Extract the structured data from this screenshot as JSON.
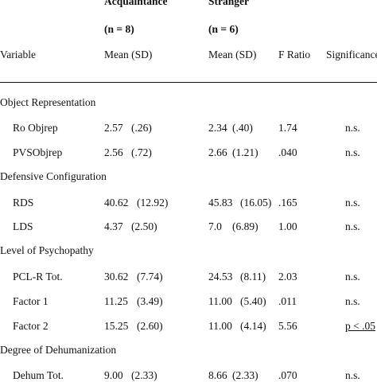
{
  "header": {
    "group1": "Acquaintance",
    "group2": "Stranger",
    "n1": "(n = 8)",
    "n2": "(n = 6)",
    "variable": "Variable",
    "mean1": "Mean  (SD)",
    "mean2": "Mean  (SD)",
    "f_ratio": "F Ratio",
    "significance": "Significance"
  },
  "sections": [
    {
      "title": "Object Representation",
      "rows": [
        {
          "label": "Ro Objrep",
          "m1": "2.57",
          "sd1": "(.26)",
          "m2": "2.34",
          "sd2": "(.40)",
          "f": "1.74",
          "sig": "n.s."
        },
        {
          "label": "PVSObjrep",
          "m1": "2.56",
          "sd1": "(.72)",
          "m2": "2.66",
          "sd2": "(1.21)",
          "f": ".040",
          "sig": "n.s."
        }
      ]
    },
    {
      "title": "Defensive Configuration",
      "rows": [
        {
          "label": "RDS",
          "m1": "40.62",
          "sd1": "(12.92)",
          "m2": "45.83",
          "sd2": "(16.05)",
          "f": ".165",
          "sig": "n.s."
        },
        {
          "label": "LDS",
          "m1": "4.37",
          "sd1": "(2.50)",
          "m2": "7.0",
          "sd2": "(6.89)",
          "f": "1.00",
          "sig": "n.s."
        }
      ]
    },
    {
      "title": "Level of Psychopathy",
      "rows": [
        {
          "label": "PCL-R Tot.",
          "m1": "30.62",
          "sd1": "(7.74)",
          "m2": "24.53",
          "sd2": "(8.11)",
          "f": "2.03",
          "sig": "n.s."
        },
        {
          "label": "Factor 1",
          "m1": "11.25",
          "sd1": "(3.49)",
          "m2": "11.00",
          "sd2": "(5.40)",
          "f": ".011",
          "sig": "n.s."
        },
        {
          "label": "Factor 2",
          "m1": "15.25",
          "sd1": "(2.60)",
          "m2": "11.00",
          "sd2": "(4.14)",
          "f": "5.56",
          "sig": "p < .05"
        }
      ]
    },
    {
      "title": "Degree of Dehumanization",
      "rows": [
        {
          "label": "Dehum Tot.",
          "m1": "9.00",
          "sd1": "(2.33)",
          "m2": "8.66",
          "sd2": "(2.33)",
          "f": ".070",
          "sig": "n.s."
        }
      ]
    }
  ]
}
